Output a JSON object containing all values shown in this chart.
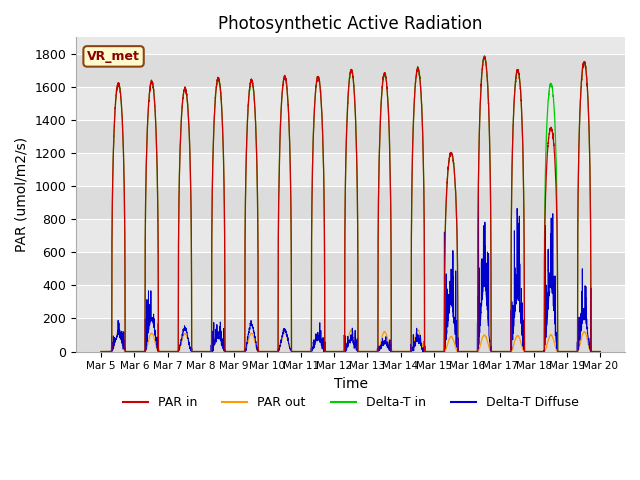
{
  "title": "Photosynthetic Active Radiation",
  "xlabel": "Time",
  "ylabel": "PAR (umol/m2/s)",
  "ylim": [
    0,
    1900
  ],
  "yticks": [
    0,
    200,
    400,
    600,
    800,
    1000,
    1200,
    1400,
    1600,
    1800
  ],
  "legend_labels": [
    "PAR in",
    "PAR out",
    "Delta-T in",
    "Delta-T Diffuse"
  ],
  "legend_colors": [
    "#cc0000",
    "#ff9900",
    "#00cc00",
    "#0000cc"
  ],
  "station_label": "VR_met",
  "background_color": "#ffffff",
  "axes_bg_color": "#e8e8e8",
  "n_days": 15,
  "points_per_day": 288,
  "delta_t_peaks": [
    1620,
    1630,
    1590,
    1650,
    1640,
    1660,
    1660,
    1700,
    1680,
    1710,
    1200,
    1780,
    1700,
    1620,
    1750
  ],
  "par_in_peaks": [
    1620,
    1630,
    1590,
    1650,
    1640,
    1660,
    1660,
    1700,
    1680,
    1710,
    1200,
    1780,
    1700,
    1350,
    1750
  ],
  "par_out_peaks": [
    110,
    110,
    110,
    120,
    110,
    110,
    110,
    130,
    120,
    130,
    90,
    100,
    95,
    100,
    120
  ],
  "delta_d_peaks": [
    260,
    500,
    140,
    220,
    170,
    130,
    190,
    180,
    130,
    150,
    720,
    1010,
    820,
    980,
    520
  ],
  "delta_d_noisy": [
    true,
    true,
    false,
    true,
    false,
    false,
    true,
    true,
    true,
    true,
    true,
    true,
    true,
    true,
    true
  ]
}
